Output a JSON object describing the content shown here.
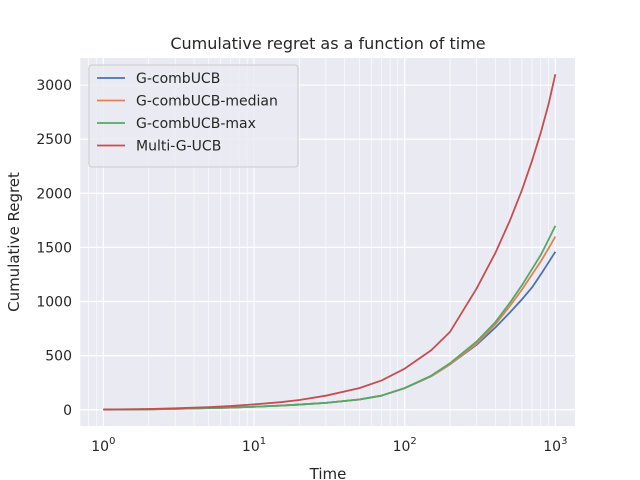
{
  "chart_data": {
    "type": "line",
    "title": "Cumulative regret as a function of time",
    "xlabel": "Time",
    "ylabel": "Cumulative Regret",
    "xscale": "log",
    "xlim": [
      0.7,
      1350
    ],
    "ylim": [
      -150,
      3250
    ],
    "xticks": [
      {
        "value": 1,
        "base": "10",
        "exp": "0"
      },
      {
        "value": 10,
        "base": "10",
        "exp": "1"
      },
      {
        "value": 100,
        "base": "10",
        "exp": "2"
      },
      {
        "value": 1000,
        "base": "10",
        "exp": "3"
      }
    ],
    "yticks": [
      {
        "value": 0,
        "label": "0"
      },
      {
        "value": 500,
        "label": "500"
      },
      {
        "value": 1000,
        "label": "1000"
      },
      {
        "value": 1500,
        "label": "1500"
      },
      {
        "value": 2000,
        "label": "2000"
      },
      {
        "value": 2500,
        "label": "2500"
      },
      {
        "value": 3000,
        "label": "3000"
      }
    ],
    "grid": true,
    "legend_position": "top-left",
    "x": [
      1,
      2,
      3,
      5,
      7,
      10,
      15,
      20,
      30,
      50,
      70,
      100,
      150,
      200,
      300,
      400,
      500,
      600,
      700,
      800,
      900,
      1000
    ],
    "series": [
      {
        "name": "G-combUCB",
        "color": "#4c72b0",
        "values": [
          1,
          4,
          8,
          15,
          20,
          28,
          38,
          48,
          64,
          95,
          130,
          200,
          310,
          420,
          600,
          760,
          900,
          1020,
          1130,
          1250,
          1360,
          1460
        ]
      },
      {
        "name": "G-combUCB-median",
        "color": "#dd8452",
        "values": [
          1,
          4,
          8,
          15,
          20,
          28,
          38,
          48,
          64,
          95,
          130,
          200,
          310,
          420,
          610,
          790,
          960,
          1110,
          1250,
          1370,
          1490,
          1600
        ]
      },
      {
        "name": "G-combUCB-max",
        "color": "#55a868",
        "values": [
          1,
          4,
          8,
          15,
          20,
          28,
          38,
          48,
          64,
          95,
          130,
          200,
          315,
          430,
          630,
          810,
          990,
          1150,
          1300,
          1430,
          1570,
          1700
        ]
      },
      {
        "name": "Multi-G-UCB",
        "color": "#c44e52",
        "values": [
          2,
          7,
          14,
          24,
          34,
          50,
          70,
          90,
          130,
          200,
          270,
          380,
          550,
          720,
          1120,
          1450,
          1750,
          2030,
          2300,
          2560,
          2820,
          3100
        ]
      }
    ]
  },
  "style": {
    "plot_background": "#eaeaf2",
    "grid_color": "#ffffff"
  }
}
